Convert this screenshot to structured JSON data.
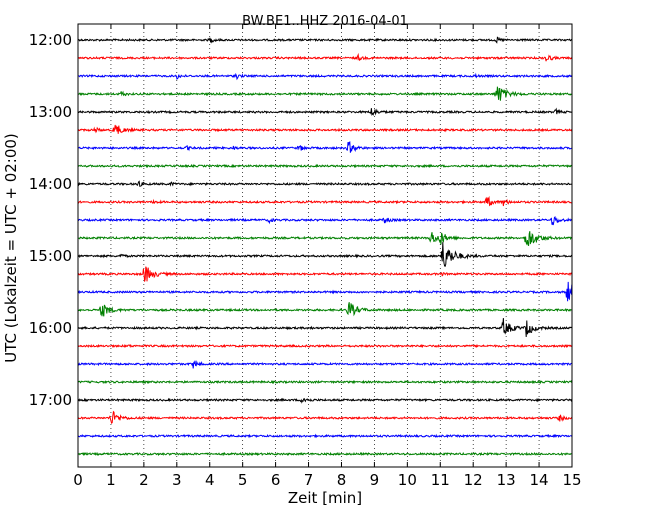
{
  "chart_data": {
    "type": "line",
    "title": "BW.BE1..HHZ 2016-04-01",
    "xlabel": "Zeit  [min]",
    "ylabel": "UTC (Lokalzeit = UTC + 02:00)",
    "xlim": [
      0,
      15
    ],
    "x_ticks": [
      "0",
      "1",
      "2",
      "3",
      "4",
      "5",
      "6",
      "7",
      "8",
      "9",
      "10",
      "11",
      "12",
      "13",
      "14",
      "15"
    ],
    "y_ticks": [
      "12:00",
      "13:00",
      "14:00",
      "15:00",
      "16:00",
      "17:00"
    ],
    "grid": "vertical dotted at each minute",
    "track_colors": [
      "#000000",
      "#ff0000",
      "#0000ff",
      "#008000"
    ],
    "traces": [
      {
        "start": "12:00",
        "color": "black",
        "events": [
          {
            "t": 4.0,
            "amp": 0.3
          },
          {
            "t": 12.7,
            "amp": 0.3
          }
        ]
      },
      {
        "start": "12:15",
        "color": "red",
        "events": [
          {
            "t": 8.5,
            "amp": 0.3
          },
          {
            "t": 14.2,
            "amp": 0.5
          }
        ]
      },
      {
        "start": "12:30",
        "color": "blue",
        "events": [
          {
            "t": 3.0,
            "amp": 0.3
          },
          {
            "t": 4.8,
            "amp": 0.3
          },
          {
            "t": 12.0,
            "amp": 0.2
          }
        ]
      },
      {
        "start": "12:45",
        "color": "green",
        "events": [
          {
            "t": 1.3,
            "amp": 0.3
          },
          {
            "t": 12.7,
            "amp": 1.3
          }
        ]
      },
      {
        "start": "13:00",
        "color": "black",
        "events": [
          {
            "t": 8.9,
            "amp": 0.6
          },
          {
            "t": 14.5,
            "amp": 0.3
          }
        ]
      },
      {
        "start": "13:15",
        "color": "red",
        "events": [
          {
            "t": 0.5,
            "amp": 0.3
          },
          {
            "t": 1.1,
            "amp": 0.9
          }
        ]
      },
      {
        "start": "13:30",
        "color": "blue",
        "events": [
          {
            "t": 3.3,
            "amp": 0.2
          },
          {
            "t": 4.7,
            "amp": 0.2
          },
          {
            "t": 6.7,
            "amp": 0.4
          },
          {
            "t": 8.2,
            "amp": 0.8
          }
        ]
      },
      {
        "start": "13:45",
        "color": "green",
        "events": []
      },
      {
        "start": "14:00",
        "color": "black",
        "events": [
          {
            "t": 1.8,
            "amp": 0.4
          },
          {
            "t": 2.8,
            "amp": 0.2
          }
        ]
      },
      {
        "start": "14:15",
        "color": "red",
        "events": [
          {
            "t": 2.3,
            "amp": 0.2
          },
          {
            "t": 12.4,
            "amp": 0.7
          },
          {
            "t": 12.9,
            "amp": 0.4
          }
        ]
      },
      {
        "start": "14:30",
        "color": "blue",
        "events": [
          {
            "t": 5.8,
            "amp": 0.3
          },
          {
            "t": 9.3,
            "amp": 0.4
          },
          {
            "t": 14.4,
            "amp": 0.7
          }
        ]
      },
      {
        "start": "14:45",
        "color": "green",
        "events": [
          {
            "t": 10.7,
            "amp": 0.9
          },
          {
            "t": 11.0,
            "amp": 0.7
          },
          {
            "t": 13.6,
            "amp": 1.5
          }
        ]
      },
      {
        "start": "15:00",
        "color": "black",
        "events": [
          {
            "t": 1.3,
            "amp": 0.2
          },
          {
            "t": 11.05,
            "amp": 1.8
          }
        ]
      },
      {
        "start": "15:15",
        "color": "red",
        "events": [
          {
            "t": 2.0,
            "amp": 1.2
          },
          {
            "t": 11.0,
            "amp": 0.2
          }
        ]
      },
      {
        "start": "15:30",
        "color": "blue",
        "events": [
          {
            "t": 14.85,
            "amp": 1.5
          }
        ]
      },
      {
        "start": "15:45",
        "color": "green",
        "events": [
          {
            "t": 0.7,
            "amp": 1.0
          },
          {
            "t": 8.2,
            "amp": 1.1
          }
        ]
      },
      {
        "start": "16:00",
        "color": "black",
        "events": [
          {
            "t": 7.0,
            "amp": 0.1
          },
          {
            "t": 12.9,
            "amp": 1.1
          },
          {
            "t": 13.6,
            "amp": 1.0
          }
        ]
      },
      {
        "start": "16:15",
        "color": "red",
        "events": [
          {
            "t": 1.5,
            "amp": 0.1
          }
        ]
      },
      {
        "start": "16:30",
        "color": "blue",
        "events": [
          {
            "t": 3.5,
            "amp": 0.5
          }
        ]
      },
      {
        "start": "16:45",
        "color": "green",
        "events": []
      },
      {
        "start": "17:00",
        "color": "black",
        "events": [
          {
            "t": 6.8,
            "amp": 0.5
          }
        ]
      },
      {
        "start": "17:15",
        "color": "red",
        "events": [
          {
            "t": 1.0,
            "amp": 1.0
          },
          {
            "t": 14.6,
            "amp": 0.4
          }
        ]
      },
      {
        "start": "17:30",
        "color": "blue",
        "events": []
      },
      {
        "start": "17:45",
        "color": "green",
        "events": []
      }
    ]
  }
}
